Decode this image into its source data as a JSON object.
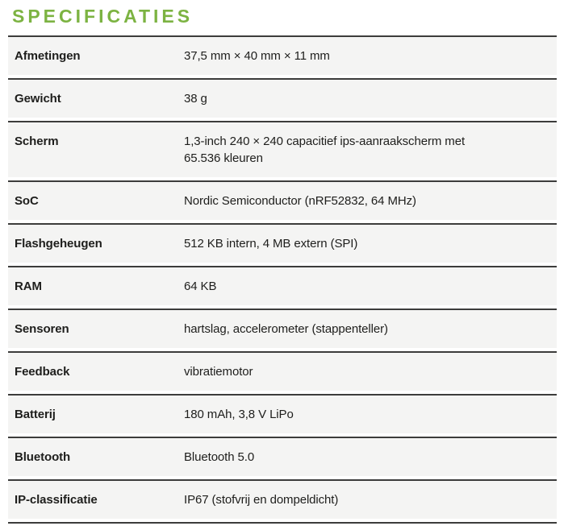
{
  "title": "SPECIFICATIES",
  "colors": {
    "accent_green": "#7cb342",
    "rule_dark": "#3c3c3b",
    "row_background": "#f4f4f3",
    "text": "#1e1e1c"
  },
  "table": {
    "rows": [
      {
        "label": "Afmetingen",
        "value": "37,5 mm × 40 mm × 11 mm"
      },
      {
        "label": "Gewicht",
        "value": "38 g"
      },
      {
        "label": "Scherm",
        "value": "1,3-inch 240 × 240 capacitief ips-aanraakscherm met\n65.536 kleuren"
      },
      {
        "label": "SoC",
        "value": "Nordic Semiconductor (nRF52832, 64 MHz)"
      },
      {
        "label": "Flashgeheugen",
        "value": "512 KB intern, 4 MB extern (SPI)"
      },
      {
        "label": "RAM",
        "value": "64 KB"
      },
      {
        "label": "Sensoren",
        "value": "hartslag, accelerometer (stappenteller)"
      },
      {
        "label": "Feedback",
        "value": "vibratiemotor"
      },
      {
        "label": "Batterij",
        "value": "180 mAh, 3,8 V LiPo"
      },
      {
        "label": "Bluetooth",
        "value": "Bluetooth 5.0"
      },
      {
        "label": "IP-classificatie",
        "value": "IP67 (stofvrij en dompeldicht)"
      }
    ]
  }
}
